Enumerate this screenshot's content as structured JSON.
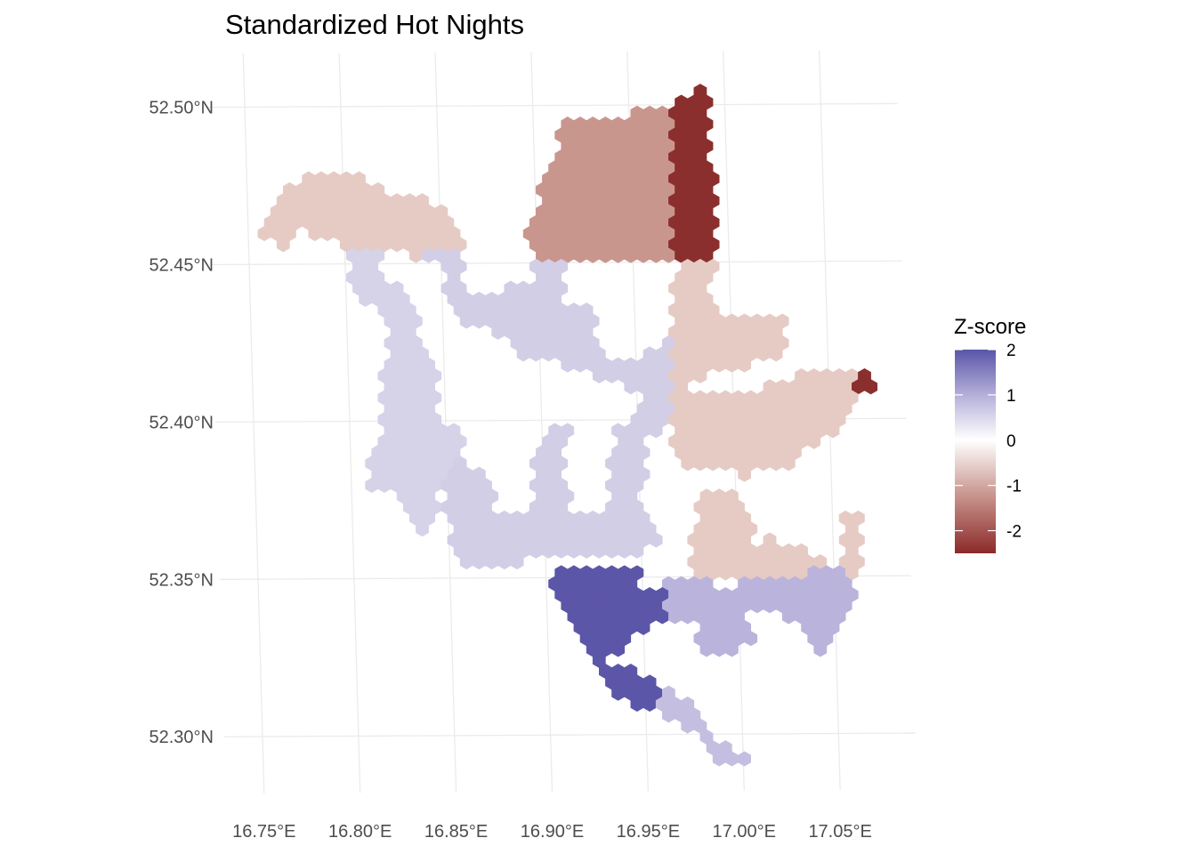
{
  "title": "Standardized Hot Nights",
  "axes": {
    "x_ticks": [
      {
        "value": 16.75,
        "label": "16.75°E"
      },
      {
        "value": 16.8,
        "label": "16.80°E"
      },
      {
        "value": 16.85,
        "label": "16.85°E"
      },
      {
        "value": 16.9,
        "label": "16.90°E"
      },
      {
        "value": 16.95,
        "label": "16.95°E"
      },
      {
        "value": 17.0,
        "label": "17.00°E"
      },
      {
        "value": 17.05,
        "label": "17.05°E"
      }
    ],
    "y_ticks": [
      {
        "value": 52.3,
        "label": "52.30°N"
      },
      {
        "value": 52.35,
        "label": "52.35°N"
      },
      {
        "value": 52.4,
        "label": "52.40°N"
      },
      {
        "value": 52.45,
        "label": "52.45°N"
      },
      {
        "value": 52.5,
        "label": "52.50°N"
      }
    ]
  },
  "legend": {
    "title": "Z-score",
    "ticks": [
      {
        "value": 2,
        "label": "2"
      },
      {
        "value": 1,
        "label": "1"
      },
      {
        "value": 0,
        "label": "0"
      },
      {
        "value": -1,
        "label": "-1"
      },
      {
        "value": -2,
        "label": "-2"
      }
    ],
    "range": [
      -2.5,
      2.0
    ],
    "colors": {
      "low": "#8b2a2a",
      "mid": "#ffffff",
      "high": "#5a55a8"
    }
  },
  "regions": [
    {
      "name": "north-west",
      "z": -0.5,
      "color": "#e6cbc5"
    },
    {
      "name": "north-central",
      "z": -1.2,
      "color": "#c9968e"
    },
    {
      "name": "north-east-strip",
      "z": -2.5,
      "color": "#8b2f2e"
    },
    {
      "name": "east-outlier",
      "z": -2.5,
      "color": "#8b2f2e"
    },
    {
      "name": "east",
      "z": -0.5,
      "color": "#e6cbc5"
    },
    {
      "name": "south-east",
      "z": -0.5,
      "color": "#e6cbc5"
    },
    {
      "name": "central-west",
      "z": 0.6,
      "color": "#d6d2e8"
    },
    {
      "name": "central",
      "z": 0.7,
      "color": "#d2cee6"
    },
    {
      "name": "south-central",
      "z": 2.0,
      "color": "#5c56a8"
    },
    {
      "name": "south",
      "z": 1.2,
      "color": "#bab4dc"
    },
    {
      "name": "south-tail",
      "z": 1.0,
      "color": "#c4bfe0"
    }
  ]
}
